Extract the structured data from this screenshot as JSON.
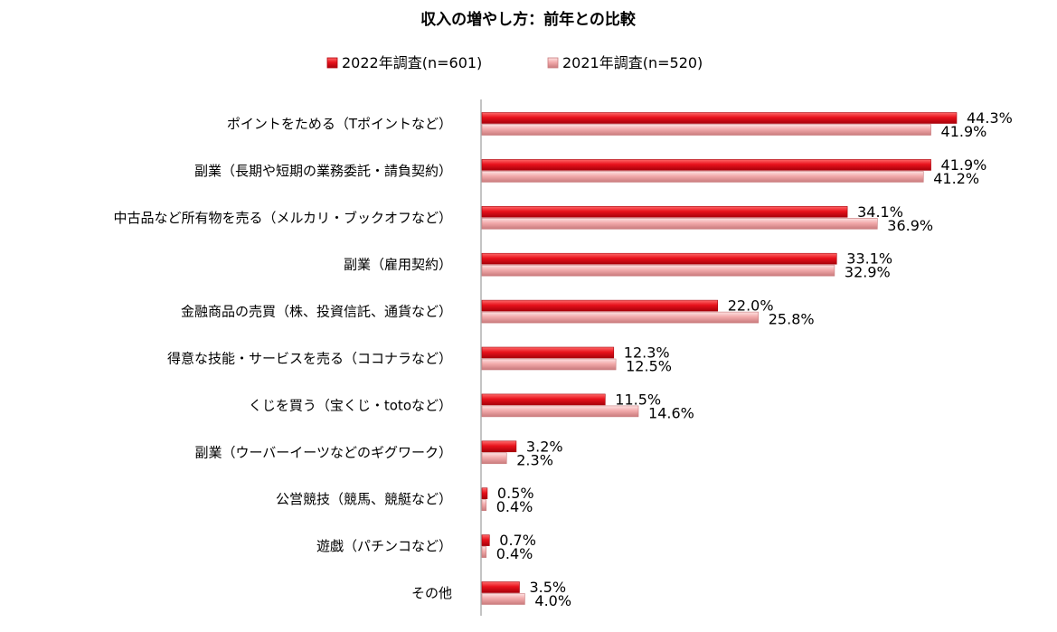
{
  "chart_data": {
    "type": "bar",
    "orientation": "horizontal",
    "title": "収入の増やし方：前年との比較",
    "categories": [
      "ポイントをためる（Tポイントなど）",
      "副業（長期や短期の業務委託・請負契約）",
      "中古品など所有物を売る（メルカリ・ブックオフなど）",
      "副業（雇用契約）",
      "金融商品の売買（株、投資信託、通貨など）",
      "得意な技能・サービスを売る（ココナラなど）",
      "くじを買う（宝くじ・totoなど）",
      "副業（ウーバーイーツなどのギグワーク）",
      "公営競技（競馬、競艇など）",
      "遊戯（パチンコなど）",
      "その他"
    ],
    "series": [
      {
        "name": "2022年調査(n=601)",
        "color": "#e8121c",
        "values": [
          44.3,
          41.9,
          34.1,
          33.1,
          22.0,
          12.3,
          11.5,
          3.2,
          0.5,
          0.7,
          3.5
        ],
        "labels": [
          "44.3%",
          "41.9%",
          "34.1%",
          "33.1%",
          "22.0%",
          "12.3%",
          "11.5%",
          "3.2%",
          "0.5%",
          "0.7%",
          "3.5%"
        ]
      },
      {
        "name": "2021年調査(n=520)",
        "color": "#f0a8aa",
        "values": [
          41.9,
          41.2,
          36.9,
          32.9,
          25.8,
          12.5,
          14.6,
          2.3,
          0.4,
          0.4,
          4.0
        ],
        "labels": [
          "41.9%",
          "41.2%",
          "36.9%",
          "32.9%",
          "25.8%",
          "12.5%",
          "14.6%",
          "2.3%",
          "0.4%",
          "0.4%",
          "4.0%"
        ]
      }
    ],
    "xlim": [
      0,
      50
    ],
    "grid": false,
    "legend_position": "top"
  }
}
